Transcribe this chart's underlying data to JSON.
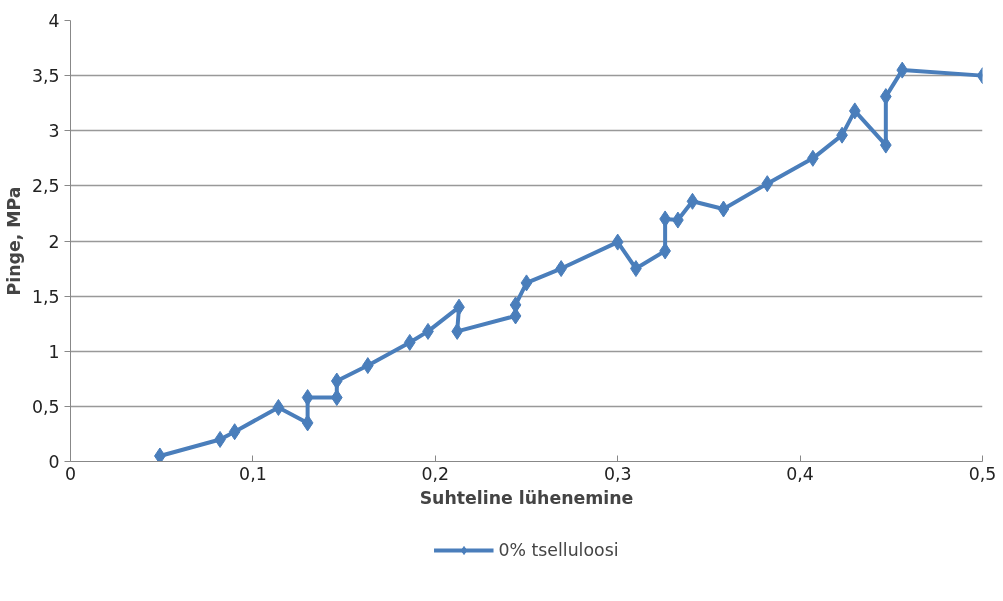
{
  "chart_data": {
    "type": "line",
    "xlabel": "Suhteline lühenemine",
    "ylabel": "Pinge, MPa",
    "xlim": [
      0,
      0.5
    ],
    "ylim": [
      0,
      4
    ],
    "xticks": [
      0,
      {
        "value": 0.1,
        "label": "0,1"
      },
      {
        "value": 0.2,
        "label": "0,2"
      },
      {
        "value": 0.3,
        "label": "0,3"
      },
      {
        "value": 0.4,
        "label": "0,4"
      },
      {
        "value": 0.5,
        "label": "0,5"
      }
    ],
    "yticks": [
      0,
      {
        "value": 0.5,
        "label": "0,5"
      },
      1,
      {
        "value": 1.5,
        "label": "1,5"
      },
      2,
      {
        "value": 2.5,
        "label": "2,5"
      },
      3,
      {
        "value": 3.5,
        "label": "3,5"
      },
      4
    ],
    "grid": "y",
    "legend": "bottom",
    "marker": "diamond",
    "line_style": "solid",
    "series": [
      {
        "name": "0% tselluloosi",
        "color": "#4a7ebb",
        "x": [
          0.049,
          0.082,
          0.09,
          0.114,
          0.13,
          0.13,
          0.146,
          0.146,
          0.163,
          0.186,
          0.196,
          0.213,
          0.212,
          0.244,
          0.244,
          0.25,
          0.269,
          0.3,
          0.31,
          0.326,
          0.326,
          0.333,
          0.341,
          0.358,
          0.382,
          0.407,
          0.423,
          0.43,
          0.447,
          0.447,
          0.456,
          0.5
        ],
        "values": [
          0.05,
          0.2,
          0.27,
          0.49,
          0.35,
          0.58,
          0.58,
          0.73,
          0.87,
          1.08,
          1.18,
          1.4,
          1.18,
          1.32,
          1.42,
          1.62,
          1.75,
          1.99,
          1.75,
          1.91,
          2.2,
          2.19,
          2.36,
          2.29,
          2.52,
          2.75,
          2.96,
          3.18,
          2.87,
          3.31,
          3.55,
          3.5
        ]
      }
    ]
  }
}
